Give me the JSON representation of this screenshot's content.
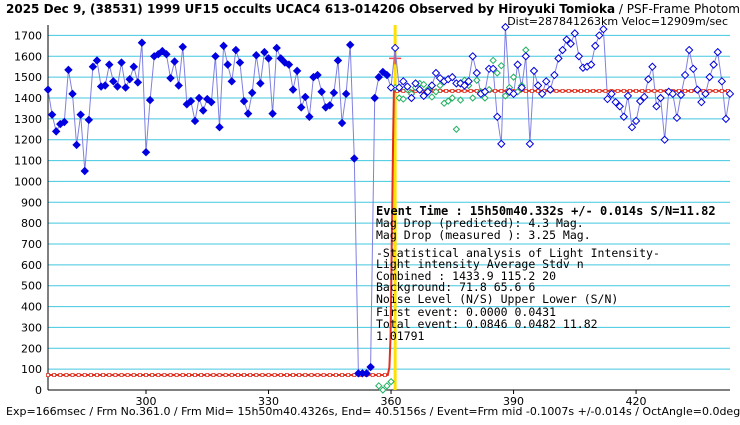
{
  "header": {
    "title_main": "2025 Dec 9, (38531) 1999 UF15 occults UCAC4 613-014206 Observed by Hiroyuki Tomioka",
    "title_method": " / PSF-Frame Photometry /",
    "title_line2": "Dist=287841263km Veloc=12909m/sec"
  },
  "footer": {
    "text": "Exp=166msec / Frm No.361.0 / Frm Mid= 15h50m40.4326s, End= 40.5156s / Event=Frm mid -0.1007s +/-0.014s / OctAngle=0.0deg"
  },
  "stats": {
    "event_time": "Event Time : 15h50m40.332s  +/- 0.014s  S/N=11.82",
    "mag_pred": "Mag Drop (predicted):  4.3    Mag.",
    "mag_meas": "Mag Drop (measured ):  3.25  Mag.",
    "stat_title": "-Statistical analysis of Light Intensity-",
    "stat_header": "Light intensity    Average   Stdv      n",
    "combined": "  Combined   :      1433.9    115.2     20",
    "background": "  Background:          71.8     65.6      6",
    "noise_header": "Noise Level (N/S)   Upper     Lower   (S/N)",
    "first_event": "  First event:      0.0000    0.0431",
    "total_event": "  Total event:      0.0846    0.0482    11.82",
    "ratio": "1.01791"
  },
  "chart_data": {
    "type": "line",
    "xlim": [
      276,
      443
    ],
    "ylim": [
      0,
      1750
    ],
    "x_ticks": [
      300,
      330,
      360,
      390,
      420
    ],
    "y_ticks": [
      0,
      100,
      200,
      300,
      400,
      500,
      600,
      700,
      800,
      900,
      1000,
      1100,
      1200,
      1300,
      1400,
      1500,
      1600,
      1700
    ],
    "grid": true,
    "colors": {
      "grid": "#40c8e0",
      "curve": "#8080e0",
      "target": "#0000e0",
      "comparison": "#20b060",
      "model": "#e03020",
      "event_line": "#ffe000",
      "event_marker": "#ff4040",
      "axis": "#000000"
    },
    "event_x": 361,
    "event_level": 1590,
    "model": {
      "x": [
        276,
        359.2,
        359.6,
        359.9,
        360.1,
        360.3,
        360.5,
        360.7,
        443
      ],
      "y": [
        71.8,
        71.8,
        110,
        260,
        600,
        900,
        1200,
        1433.9,
        1433.9
      ]
    },
    "target": {
      "x": [
        276,
        277,
        278,
        279,
        280,
        281,
        282,
        283,
        284,
        285,
        286,
        287,
        288,
        289,
        290,
        291,
        292,
        293,
        294,
        295,
        296,
        297,
        298,
        299,
        300,
        301,
        302,
        303,
        304,
        305,
        306,
        307,
        308,
        309,
        310,
        311,
        312,
        313,
        314,
        315,
        316,
        317,
        318,
        319,
        320,
        321,
        322,
        323,
        324,
        325,
        326,
        327,
        328,
        329,
        330,
        331,
        332,
        333,
        334,
        335,
        336,
        337,
        338,
        339,
        340,
        341,
        342,
        343,
        344,
        345,
        346,
        347,
        348,
        349,
        350,
        351,
        352,
        353,
        354,
        355,
        356,
        357,
        358,
        359,
        360,
        361,
        362,
        363,
        364,
        365,
        366,
        367,
        368,
        369,
        370,
        371,
        372,
        373,
        374,
        375,
        376,
        377,
        378,
        379,
        380,
        381,
        382,
        383,
        384,
        385,
        386,
        387,
        388,
        389,
        390,
        391,
        392,
        393,
        394,
        395,
        396,
        397,
        398,
        399,
        400,
        401,
        402,
        403,
        404,
        405,
        406,
        407,
        408,
        409,
        410,
        411,
        412,
        413,
        414,
        415,
        416,
        417,
        418,
        419,
        420,
        421,
        422,
        423,
        424,
        425,
        426,
        427,
        428,
        429,
        430,
        431,
        432,
        433,
        434,
        435,
        436,
        437,
        438,
        439,
        440,
        441,
        442,
        443
      ],
      "y": [
        1440,
        1320,
        1240,
        1275,
        1285,
        1535,
        1420,
        1175,
        1320,
        1050,
        1295,
        1550,
        1580,
        1455,
        1460,
        1560,
        1480,
        1455,
        1570,
        1450,
        1490,
        1550,
        1475,
        1665,
        1140,
        1390,
        1600,
        1610,
        1625,
        1610,
        1495,
        1575,
        1460,
        1645,
        1370,
        1385,
        1290,
        1400,
        1340,
        1395,
        1380,
        1600,
        1260,
        1650,
        1560,
        1480,
        1630,
        1570,
        1385,
        1325,
        1425,
        1605,
        1470,
        1620,
        1590,
        1325,
        1640,
        1590,
        1570,
        1560,
        1440,
        1530,
        1355,
        1405,
        1310,
        1500,
        1510,
        1430,
        1355,
        1365,
        1425,
        1580,
        1280,
        1420,
        1655,
        1110,
        80,
        80,
        80,
        110,
        1400,
        1500,
        1525,
        1510,
        1450,
        1640,
        1450,
        1480,
        1455,
        1400,
        1470,
        1440,
        1410,
        1430,
        1460,
        1520,
        1495,
        1480,
        1490,
        1500,
        1470,
        1470,
        1460,
        1480,
        1600,
        1520,
        1420,
        1430,
        1540,
        1540,
        1310,
        1180,
        1740,
        1430,
        1420,
        1560,
        1450,
        1600,
        1180,
        1530,
        1460,
        1420,
        1480,
        1440,
        1510,
        1590,
        1630,
        1680,
        1660,
        1710,
        1600,
        1545,
        1550,
        1560,
        1650,
        1700,
        1730,
        1395,
        1420,
        1380,
        1360,
        1310,
        1410,
        1260,
        1290,
        1385,
        1405,
        1490,
        1550,
        1360,
        1400,
        1200,
        1430,
        1420,
        1305,
        1415,
        1510,
        1630,
        1540,
        1440,
        1380,
        1420,
        1500,
        1560,
        1620,
        1480,
        1300,
        1420
      ],
      "open_from": 360
    },
    "comparison": {
      "x": [
        357,
        358,
        359,
        360,
        361,
        362,
        363,
        364,
        365,
        366,
        367,
        368,
        369,
        370,
        371,
        372,
        373,
        374,
        375,
        376,
        377,
        378,
        379,
        380,
        381,
        382,
        383,
        384,
        385,
        386,
        387,
        388,
        389,
        390,
        391,
        392,
        393
      ],
      "y": [
        20,
        0,
        20,
        40,
        1450,
        1400,
        1395,
        1440,
        1420,
        1450,
        1470,
        1465,
        1440,
        1405,
        1430,
        1460,
        1375,
        1385,
        1400,
        1250,
        1390,
        1485,
        1460,
        1400,
        1485,
        1430,
        1400,
        1440,
        1580,
        1520,
        1555,
        1410,
        1450,
        1500,
        1430,
        1460,
        1630
      ]
    }
  }
}
